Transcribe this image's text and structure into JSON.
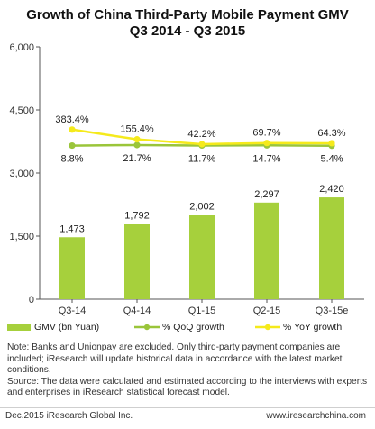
{
  "chart_data": {
    "type": "bar",
    "title": "Growth of China Third-Party Mobile Payment GMV",
    "subtitle": "Q3 2014 - Q3 2015",
    "categories": [
      "Q3-14",
      "Q4-14",
      "Q1-15",
      "Q2-15",
      "Q3-15e"
    ],
    "series": [
      {
        "name": "GMV (bn Yuan)",
        "type": "bar",
        "axis": "left",
        "color": "#a6d03c",
        "values": [
          1473,
          1792,
          2002,
          2297,
          2420
        ],
        "labels": [
          "1,473",
          "1,792",
          "2,002",
          "2,297",
          "2,420"
        ]
      },
      {
        "name": "% QoQ growth",
        "type": "line",
        "axis": "right",
        "color": "#9ac53a",
        "values": [
          8.8,
          21.7,
          11.7,
          14.7,
          5.4
        ],
        "labels": [
          "8.8%",
          "21.7%",
          "11.7%",
          "14.7%",
          "5.4%"
        ]
      },
      {
        "name": "% YoY growth",
        "type": "line",
        "axis": "right",
        "color": "#f5ea1b",
        "values": [
          383.4,
          155.4,
          42.2,
          69.7,
          64.3
        ],
        "labels": [
          "383.4%",
          "155.4%",
          "42.2%",
          "69.7%",
          "64.3%"
        ]
      }
    ],
    "yticks": [
      "6,000",
      "4,500",
      "3,000",
      "1,500",
      "0"
    ],
    "ylim": [
      0,
      6000
    ],
    "grid": false,
    "legend_position": "bottom"
  },
  "notes": {
    "note1": "Note: Banks and Unionpay are excluded. Only  third-party payment companies are included; iResearch will update historical data in accordance with the latest market conditions.",
    "note2": "Source: The  data  were calculated and estimated according to the interviews with experts and enterprises in iResearch statistical forecast model."
  },
  "footer": {
    "left": "Dec.2015 iResearch Global Inc.",
    "right": "www.iresearchchina.com"
  }
}
